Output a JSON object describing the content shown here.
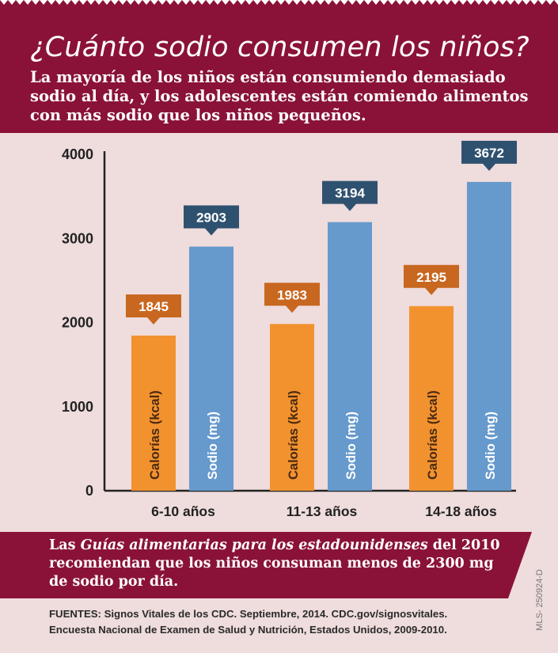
{
  "header": {
    "title": "¿Cuánto sodio consumen los niños?",
    "subtitle": "La mayoría de los niños están consumiendo demasiado sodio al día, y los adolescentes están comiendo alimentos con más sodio que los niños pequeños."
  },
  "colors": {
    "banner": "#8a1238",
    "background": "#efdcdc",
    "calories": "#f2922f",
    "calories_label": "#c8671f",
    "sodium": "#6699cc",
    "sodium_label": "#2f5170"
  },
  "chart_data": {
    "type": "bar",
    "categories": [
      "6-10 años",
      "11-13 años",
      "14-18 años"
    ],
    "series": [
      {
        "name": "Calorías (kcal)",
        "values": [
          1845,
          1983,
          2195
        ]
      },
      {
        "name": "Sodio (mg)",
        "values": [
          2903,
          3194,
          3672
        ]
      }
    ],
    "yticks": [
      0,
      1000,
      2000,
      3000,
      4000
    ],
    "ylim": [
      0,
      4000
    ],
    "grid": false
  },
  "footer": {
    "text_before": "Las ",
    "text_italic": "Guías alimentarias para los estadounidenses",
    "text_after": " del 2010 recomiendan que los niños consuman menos de 2300 mg de sodio por día.",
    "sources_line1": "FUENTES: Signos Vitales de los CDC. Septiembre, 2014. CDC.gov/signosvitales.",
    "sources_line2": "Encuesta Nacional de Examen de Salud y Nutrición, Estados Unidos, 2009-2010.",
    "code": "MLS- 250924-D"
  }
}
